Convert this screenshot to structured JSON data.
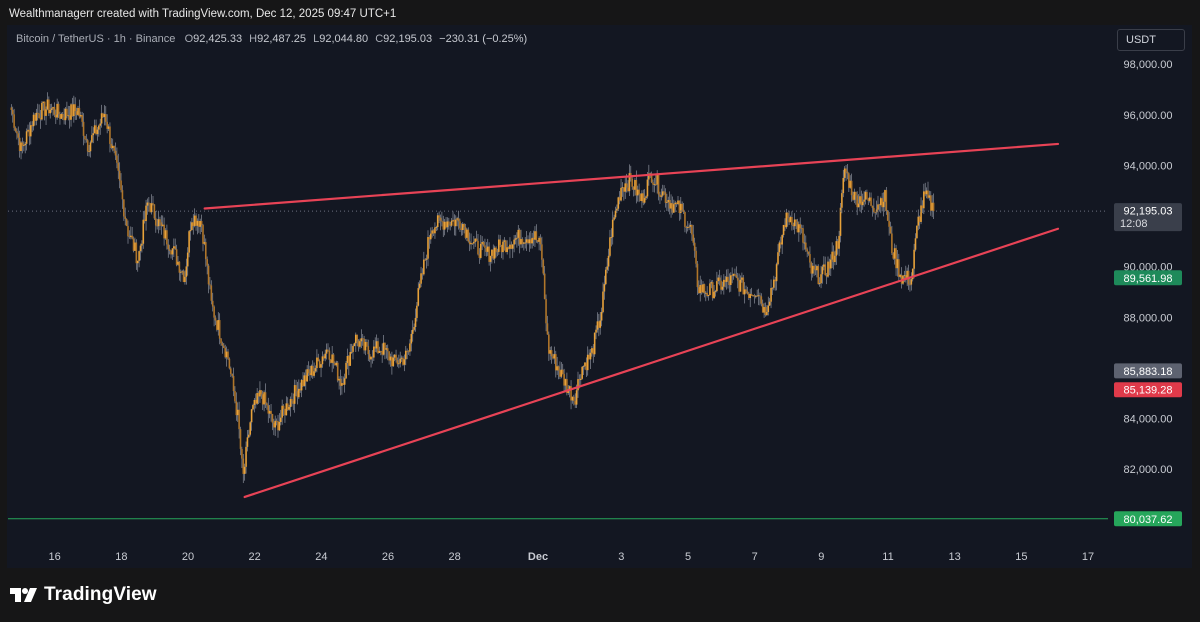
{
  "header": {
    "credit": "Wealthmanagerr created with TradingView.com, Dec 12, 2025 09:47 UTC+1"
  },
  "legend": {
    "symbol": "Bitcoin / TetherUS · 1h · Binance",
    "open_label": "O",
    "open": "92,425.33",
    "high_label": "H",
    "high": "92,487.25",
    "low_label": "L",
    "low": "92,044.80",
    "close_label": "C",
    "close": "92,195.03",
    "change": "−230.31 (−0.25%)"
  },
  "currency_button": "USDT",
  "brand": "TradingView",
  "colors": {
    "background": "#131722",
    "candle": "#e8a23a",
    "wick": "#8a8f9a",
    "trendline": "#e84356",
    "support": "#26a65b"
  },
  "chart_data": {
    "type": "candlestick",
    "title": "",
    "xlabel": "",
    "ylabel": "",
    "ylim": [
      79200,
      98800
    ],
    "y_ticks": [
      {
        "value": 98000,
        "label": "98,000.00"
      },
      {
        "value": 96000,
        "label": "96,000.00"
      },
      {
        "value": 94000,
        "label": "94,000.00"
      },
      {
        "value": 90000,
        "label": "90,000.00"
      },
      {
        "value": 88000,
        "label": "88,000.00"
      },
      {
        "value": 84000,
        "label": "84,000.00"
      },
      {
        "value": 82000,
        "label": "82,000.00"
      }
    ],
    "x_ticks": [
      {
        "day": 16,
        "label": "16"
      },
      {
        "day": 18,
        "label": "18"
      },
      {
        "day": 20,
        "label": "20"
      },
      {
        "day": 22,
        "label": "22"
      },
      {
        "day": 24,
        "label": "24"
      },
      {
        "day": 26,
        "label": "26"
      },
      {
        "day": 28,
        "label": "28"
      },
      {
        "day": 30.5,
        "label": "Dec"
      },
      {
        "day": 33,
        "label": "3"
      },
      {
        "day": 35,
        "label": "5"
      },
      {
        "day": 37,
        "label": "7"
      },
      {
        "day": 39,
        "label": "9"
      },
      {
        "day": 41,
        "label": "11"
      },
      {
        "day": 43,
        "label": "13"
      },
      {
        "day": 45,
        "label": "15"
      },
      {
        "day": 47,
        "label": "17"
      }
    ],
    "xlim": [
      14.6,
      47.6
    ],
    "price_path": [
      [
        14.7,
        96200
      ],
      [
        15.0,
        94600
      ],
      [
        15.4,
        96000
      ],
      [
        15.8,
        96300
      ],
      [
        16.2,
        96000
      ],
      [
        16.7,
        96200
      ],
      [
        17.0,
        94800
      ],
      [
        17.3,
        95500
      ],
      [
        17.5,
        96100
      ],
      [
        17.9,
        93600
      ],
      [
        18.2,
        91400
      ],
      [
        18.5,
        90300
      ],
      [
        18.8,
        92600
      ],
      [
        19.2,
        91500
      ],
      [
        19.5,
        90800
      ],
      [
        19.9,
        89600
      ],
      [
        20.1,
        92000
      ],
      [
        20.4,
        91800
      ],
      [
        20.7,
        88500
      ],
      [
        21.2,
        86400
      ],
      [
        21.5,
        84000
      ],
      [
        21.65,
        81600
      ],
      [
        21.9,
        84200
      ],
      [
        22.2,
        85000
      ],
      [
        22.6,
        83600
      ],
      [
        23.0,
        84600
      ],
      [
        23.4,
        85400
      ],
      [
        23.8,
        86000
      ],
      [
        24.2,
        86800
      ],
      [
        24.6,
        85400
      ],
      [
        25.0,
        87200
      ],
      [
        25.4,
        86600
      ],
      [
        25.8,
        86800
      ],
      [
        26.2,
        86200
      ],
      [
        26.6,
        86500
      ],
      [
        26.9,
        88800
      ],
      [
        27.3,
        91600
      ],
      [
        27.7,
        91800
      ],
      [
        28.2,
        91800
      ],
      [
        28.6,
        90800
      ],
      [
        29.0,
        90500
      ],
      [
        29.5,
        90900
      ],
      [
        30.0,
        91200
      ],
      [
        30.4,
        91200
      ],
      [
        30.6,
        90700
      ],
      [
        30.8,
        86800
      ],
      [
        31.1,
        86000
      ],
      [
        31.4,
        85200
      ],
      [
        31.6,
        84800
      ],
      [
        31.8,
        86000
      ],
      [
        32.1,
        86500
      ],
      [
        32.4,
        88200
      ],
      [
        32.7,
        91400
      ],
      [
        33.0,
        93200
      ],
      [
        33.3,
        93400
      ],
      [
        33.6,
        92600
      ],
      [
        33.9,
        93700
      ],
      [
        34.2,
        93000
      ],
      [
        34.5,
        92500
      ],
      [
        34.8,
        92200
      ],
      [
        35.1,
        91400
      ],
      [
        35.3,
        89200
      ],
      [
        35.6,
        89000
      ],
      [
        36.0,
        89300
      ],
      [
        36.4,
        89500
      ],
      [
        36.8,
        89000
      ],
      [
        37.1,
        89100
      ],
      [
        37.3,
        88200
      ],
      [
        37.6,
        89600
      ],
      [
        37.9,
        91800
      ],
      [
        38.1,
        92000
      ],
      [
        38.4,
        91300
      ],
      [
        38.7,
        89800
      ],
      [
        39.0,
        89600
      ],
      [
        39.3,
        90200
      ],
      [
        39.5,
        91000
      ],
      [
        39.7,
        93900
      ],
      [
        40.0,
        92700
      ],
      [
        40.3,
        92700
      ],
      [
        40.6,
        92400
      ],
      [
        40.9,
        92800
      ],
      [
        41.1,
        90800
      ],
      [
        41.4,
        89600
      ],
      [
        41.7,
        89500
      ],
      [
        41.9,
        91800
      ],
      [
        42.1,
        92800
      ],
      [
        42.3,
        92400
      ],
      [
        42.4,
        92200
      ]
    ],
    "lines": [
      {
        "name": "upper-trendline",
        "from": {
          "day": 20.5,
          "price": 92300
        },
        "to": {
          "day": 46.1,
          "price": 94850
        }
      },
      {
        "name": "lower-trendline",
        "from": {
          "day": 21.7,
          "price": 80900
        },
        "to": {
          "day": 46.1,
          "price": 91500
        }
      }
    ],
    "horizontal_levels": [
      {
        "price": 80037.62,
        "label": "80,037.62",
        "color": "#26a65b"
      }
    ],
    "price_labels": [
      {
        "price": 92195.03,
        "label": "92,195.03",
        "sublabel": "12:08",
        "color": "#3a3f4b"
      },
      {
        "price": 89561.98,
        "label": "89,561.98",
        "sublabel": "",
        "color": "#1e8a5a"
      },
      {
        "price": 85883.18,
        "label": "85,883.18",
        "sublabel": "",
        "color": "#5d6270"
      },
      {
        "price": 85139.28,
        "label": "85,139.28",
        "sublabel": "",
        "color": "#e03a4a"
      },
      {
        "price": 80037.62,
        "label": "80,037.62",
        "sublabel": "",
        "color": "#26a65b"
      }
    ],
    "last_price": 92195.03
  }
}
